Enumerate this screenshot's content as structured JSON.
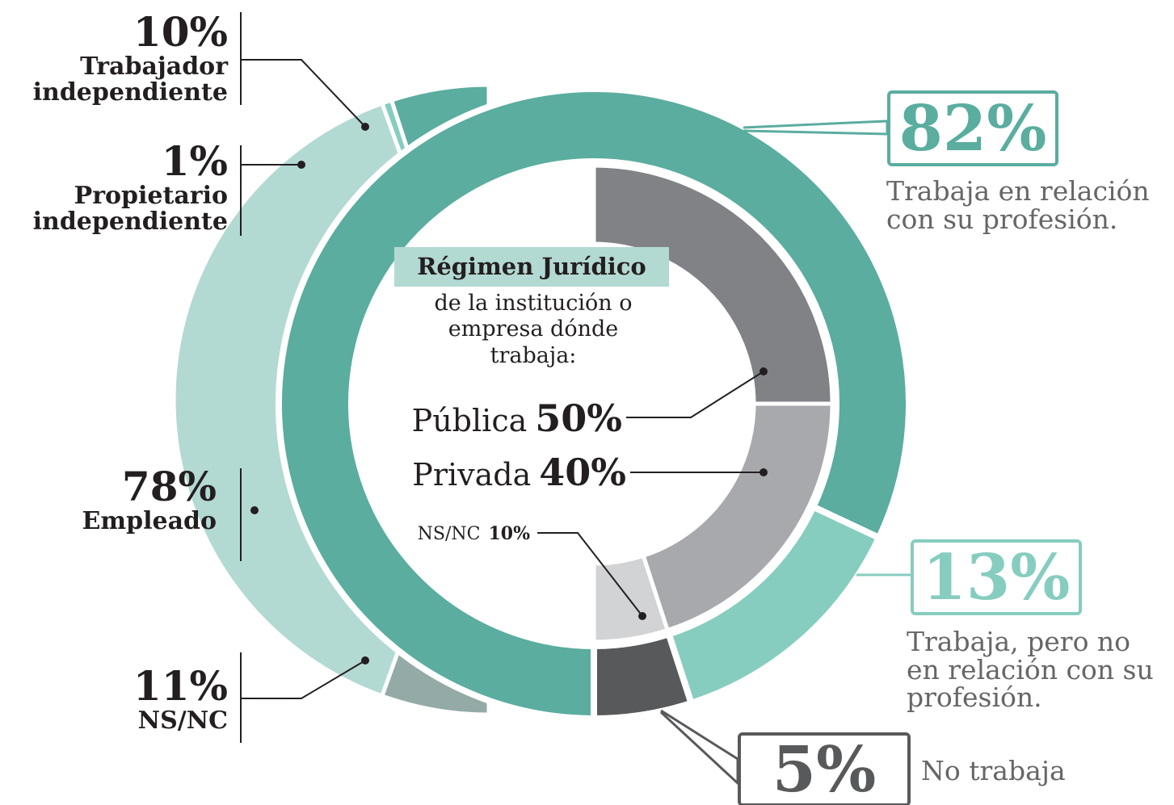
{
  "chart_data": [
    {
      "type": "donut",
      "categories": [
        "Trabaja en relación con su profesión.",
        "Trabaja, pero no en relación con su profesión.",
        "No trabaja"
      ],
      "values": [
        82,
        13,
        5
      ],
      "value_labels": [
        "82%",
        "13%",
        "5%"
      ],
      "colors": [
        "#5aad9f",
        "#86cdc0",
        "#58595b"
      ]
    },
    {
      "type": "donut",
      "categories": [
        "Trabajador independiente",
        "Propietario independiente",
        "Empleado",
        "NS/NC"
      ],
      "values": [
        10,
        1,
        78,
        11
      ],
      "value_labels": [
        "10%",
        "1%",
        "78%",
        "11%"
      ],
      "colors": [
        "#5aad9f",
        "#86cdc0",
        "#b3d9d3",
        "#94aaa6"
      ]
    },
    {
      "type": "donut",
      "title": "Régimen Jurídico",
      "subtitle": "de la institución o empresa dónde trabaja:",
      "categories": [
        "Pública",
        "Privada",
        "NS/NC"
      ],
      "values": [
        50,
        40,
        10
      ],
      "value_labels": [
        "50%",
        "40%",
        "10%"
      ],
      "colors": [
        "#808285",
        "#a7a9ac",
        "#d1d3d4"
      ]
    }
  ]
}
